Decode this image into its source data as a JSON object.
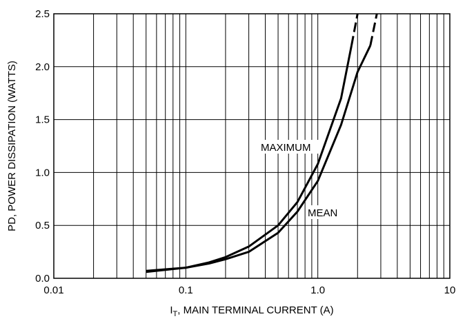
{
  "chart_data": {
    "type": "line",
    "ylabel": "PD, POWER DISSIPATION (WATTS)",
    "xlabel_parts": [
      "I",
      "T",
      ", MAIN TERMINAL CURRENT (A)"
    ],
    "xscale": "log",
    "xlim": [
      0.01,
      10
    ],
    "xticks": [
      0.01,
      0.1,
      {
        "value": 1,
        "label": "1.0"
      },
      10
    ],
    "ylim": [
      0,
      2.5
    ],
    "yticks": [
      {
        "value": 0,
        "label": "0.0"
      },
      0.5,
      {
        "value": 1,
        "label": "1.0"
      },
      1.5,
      {
        "value": 2,
        "label": "2.0"
      },
      2.5
    ],
    "grid": true,
    "series": [
      {
        "name": "MAXIMUM",
        "color": "#000000",
        "x": [
          0.05,
          0.1,
          0.15,
          0.2,
          0.3,
          0.5,
          0.7,
          1.0,
          1.5,
          1.8,
          2.0
        ],
        "values": [
          0.06,
          0.1,
          0.15,
          0.2,
          0.3,
          0.5,
          0.72,
          1.08,
          1.7,
          2.2,
          2.5
        ],
        "dashed_from": 9
      },
      {
        "name": "MEAN",
        "color": "#000000",
        "x": [
          0.05,
          0.1,
          0.15,
          0.2,
          0.3,
          0.5,
          0.7,
          1.0,
          1.5,
          2.0,
          2.5,
          2.8
        ],
        "values": [
          0.07,
          0.1,
          0.14,
          0.18,
          0.25,
          0.43,
          0.63,
          0.92,
          1.45,
          1.95,
          2.2,
          2.5
        ],
        "dashed_from": 10
      }
    ]
  }
}
